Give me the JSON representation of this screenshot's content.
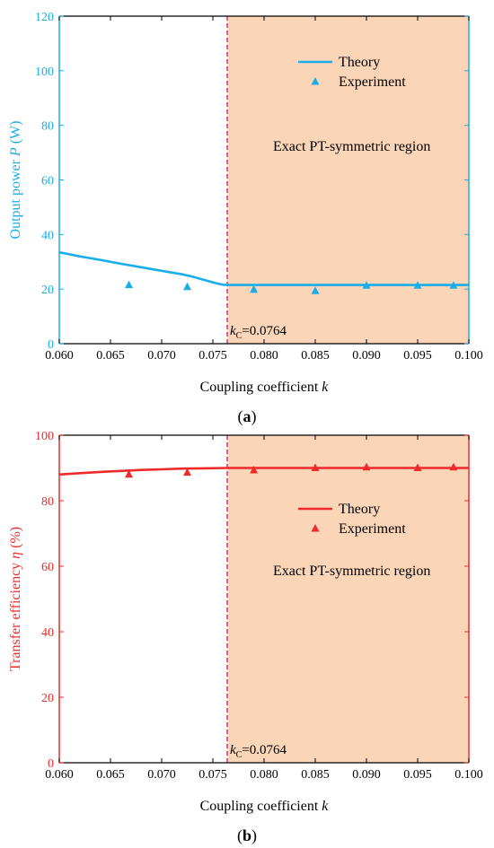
{
  "colors": {
    "panel_a": "#1aaee8",
    "panel_b": "#ee2a2a",
    "region_fill": "#fad5b8",
    "kc_line": "#c0308a",
    "axis": "#000000"
  },
  "chart_data": [
    {
      "type": "line",
      "panel_label": "a",
      "xlabel": "Coupling coefficient ",
      "xlabel_italic": "k",
      "ylabel": "Output power ",
      "ylabel_italic": "P",
      "ylabel_unit": " (W)",
      "xlim": [
        0.06,
        0.1
      ],
      "ylim": [
        0,
        120
      ],
      "xticks": [
        0.06,
        0.065,
        0.07,
        0.075,
        0.08,
        0.085,
        0.09,
        0.095,
        0.1
      ],
      "xtick_labels": [
        "0.060",
        "0.065",
        "0.070",
        "0.075",
        "0.080",
        "0.085",
        "0.090",
        "0.095",
        "0.100"
      ],
      "yticks": [
        0,
        20,
        40,
        60,
        80,
        100,
        120
      ],
      "ytick_labels": [
        "0",
        "20",
        "40",
        "60",
        "80",
        "100",
        "120"
      ],
      "region": {
        "x_start": 0.0764,
        "x_end": 0.1,
        "label": "Exact PT-symmetric region"
      },
      "kc": {
        "value": 0.0764,
        "label_k": "k",
        "label_sub": "C",
        "label_value": "=0.0764"
      },
      "series": [
        {
          "name": "Theory",
          "kind": "line",
          "x": [
            0.06,
            0.062,
            0.064,
            0.066,
            0.068,
            0.07,
            0.072,
            0.073,
            0.074,
            0.075,
            0.0756,
            0.076,
            0.0764,
            0.08,
            0.085,
            0.09,
            0.095,
            0.1
          ],
          "y": [
            33.5,
            32,
            30.7,
            29.3,
            28,
            26.7,
            25.4,
            24.6,
            23.5,
            22.5,
            21.9,
            21.6,
            21.5,
            21.5,
            21.5,
            21.5,
            21.5,
            21.5
          ]
        },
        {
          "name": "Experiment",
          "kind": "scatter",
          "x": [
            0.0668,
            0.0725,
            0.079,
            0.085,
            0.09,
            0.095,
            0.0985
          ],
          "y": [
            21.5,
            20.8,
            19.8,
            19.3,
            21.3,
            21.3,
            21.3
          ]
        }
      ],
      "legend_position": "top-right"
    },
    {
      "type": "line",
      "panel_label": "b",
      "xlabel": "Coupling coefficient ",
      "xlabel_italic": "k",
      "ylabel": "Transfer efficiency ",
      "ylabel_italic": "η",
      "ylabel_unit": " (%)",
      "xlim": [
        0.06,
        0.1
      ],
      "ylim": [
        0,
        100
      ],
      "xticks": [
        0.06,
        0.065,
        0.07,
        0.075,
        0.08,
        0.085,
        0.09,
        0.095,
        0.1
      ],
      "xtick_labels": [
        "0.060",
        "0.065",
        "0.070",
        "0.075",
        "0.080",
        "0.085",
        "0.090",
        "0.095",
        "0.100"
      ],
      "yticks": [
        0,
        20,
        40,
        60,
        80,
        100
      ],
      "ytick_labels": [
        "0",
        "20",
        "40",
        "60",
        "80",
        "100"
      ],
      "region": {
        "x_start": 0.0764,
        "x_end": 0.1,
        "label": "Exact PT-symmetric region"
      },
      "kc": {
        "value": 0.0764,
        "label_k": "k",
        "label_sub": "C",
        "label_value": "=0.0764"
      },
      "series": [
        {
          "name": "Theory",
          "kind": "line",
          "x": [
            0.06,
            0.062,
            0.064,
            0.066,
            0.068,
            0.07,
            0.072,
            0.074,
            0.0764,
            0.08,
            0.085,
            0.09,
            0.095,
            0.1
          ],
          "y": [
            88,
            88.4,
            88.8,
            89.1,
            89.4,
            89.6,
            89.8,
            89.9,
            90,
            90,
            90,
            90,
            90,
            90
          ]
        },
        {
          "name": "Experiment",
          "kind": "scatter",
          "x": [
            0.0668,
            0.0725,
            0.079,
            0.085,
            0.09,
            0.095,
            0.0985
          ],
          "y": [
            88,
            88.6,
            89.3,
            90,
            90.2,
            90,
            90.2
          ]
        }
      ],
      "legend_position": "right"
    }
  ]
}
